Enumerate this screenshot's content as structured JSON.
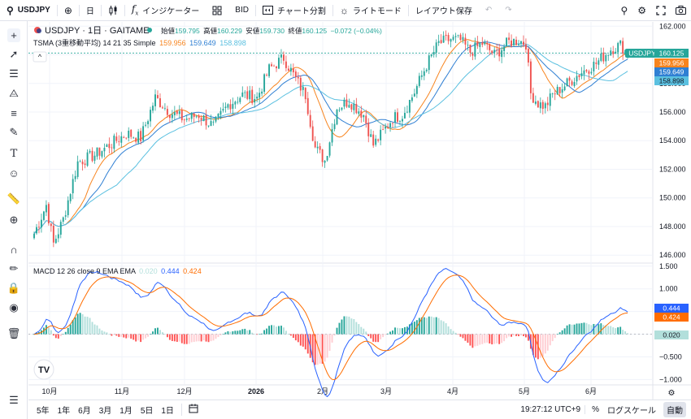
{
  "toolbar": {
    "symbol": "USDJPY",
    "add_icon": "plus-circle-icon",
    "interval": "日",
    "bar_style_icon": "candles-icon",
    "indicators_label": "インジケーター",
    "templates_icon": "grid-icon",
    "bid_label": "BID",
    "replay_label": "チャート分割",
    "theme_label": "ライトモード",
    "layout_label": "レイアウト保存",
    "undo_icon": "undo-icon",
    "redo_icon": "redo-icon",
    "right_icons": [
      "search-chart-icon",
      "gear-icon",
      "fullscreen-icon",
      "camera-icon"
    ]
  },
  "legend": {
    "title": "USDJPY · 1日 · GAITAME",
    "open_label": "始値",
    "open": "159.795",
    "high_label": "高値",
    "high": "160.229",
    "low_label": "安値",
    "low": "159.730",
    "close_label": "終値",
    "close": "160.125",
    "change": "−0.072 (−0.04%)",
    "tsma_label": "TSMA (3重移動平均) 14 21 35 Simple",
    "tsma_values": [
      "159.956",
      "159.649",
      "158.898"
    ],
    "macd_label": "MACD 12 26 close 9 EMA EMA",
    "macd_values": [
      "0.020",
      "0.444",
      "0.424"
    ]
  },
  "price_axis": {
    "ticks": [
      "162.000",
      "160.000",
      "158.000",
      "156.000",
      "154.000",
      "152.000",
      "150.000",
      "148.000",
      "146.000"
    ],
    "symbol_tag": "USDJPY",
    "last_price": "160.125",
    "ma_tags": [
      "159.956",
      "159.649",
      "158.898"
    ]
  },
  "macd_axis": {
    "ticks": [
      "1.500",
      "1.000",
      "0.500",
      "0.000",
      "−0.500",
      "−1.000"
    ],
    "tags": [
      "0.444",
      "0.424",
      "0.020"
    ]
  },
  "time_axis": [
    "10月",
    "11月",
    "12月",
    "2026",
    "2月",
    "3月",
    "4月",
    "5月",
    "6月"
  ],
  "bottom": {
    "ranges": [
      "5年",
      "1年",
      "6月",
      "3月",
      "1月",
      "5日",
      "1日"
    ],
    "calendar_icon": "calendar-icon",
    "time": "19:27:12 UTC+9",
    "percent": "%",
    "log": "ログスケール",
    "auto": "自動"
  },
  "colors": {
    "up": "#26a69a",
    "down": "#ef5350",
    "ma1": "#f7841e",
    "ma2": "#2f7fd3",
    "ma3": "#5bc0e0",
    "macd_line": "#2962ff",
    "signal_line": "#ff6d00",
    "hist_up_strong": "#26a69a",
    "hist_up_weak": "#b2dfdb",
    "hist_down_strong": "#ff5252",
    "hist_down_weak": "#ffcdd2"
  },
  "chart_data": [
    {
      "type": "candlestick",
      "title": "USDJPY · 1日 · GAITAME",
      "ylim": [
        145.5,
        162.3
      ],
      "x_labels": [
        "10月",
        "11月",
        "12月",
        "2026",
        "2月",
        "3月",
        "4月",
        "5月",
        "6月"
      ],
      "close_anchors": [
        [
          0,
          147.5
        ],
        [
          5,
          149.5
        ],
        [
          8,
          146.8
        ],
        [
          12,
          148.5
        ],
        [
          18,
          152.5
        ],
        [
          25,
          153.0
        ],
        [
          32,
          153.8
        ],
        [
          38,
          154.5
        ],
        [
          44,
          154.2
        ],
        [
          50,
          157.0
        ],
        [
          56,
          156.0
        ],
        [
          62,
          155.5
        ],
        [
          68,
          155.8
        ],
        [
          74,
          155.0
        ],
        [
          80,
          156.5
        ],
        [
          86,
          157.2
        ],
        [
          92,
          157.0
        ],
        [
          97,
          159.0
        ],
        [
          103,
          159.8
        ],
        [
          108,
          158.3
        ],
        [
          112,
          157.2
        ],
        [
          116,
          153.5
        ],
        [
          120,
          152.6
        ],
        [
          125,
          156.3
        ],
        [
          130,
          156.8
        ],
        [
          136,
          155.8
        ],
        [
          140,
          153.7
        ],
        [
          144,
          154.6
        ],
        [
          148,
          155.6
        ],
        [
          152,
          155.8
        ],
        [
          157,
          157.4
        ],
        [
          162,
          159.3
        ],
        [
          167,
          160.8
        ],
        [
          172,
          161.1
        ],
        [
          176,
          161.0
        ],
        [
          180,
          160.2
        ],
        [
          185,
          160.8
        ],
        [
          190,
          160.0
        ],
        [
          196,
          160.9
        ],
        [
          200,
          161.0
        ],
        [
          203,
          160.8
        ],
        [
          205,
          157.3
        ],
        [
          208,
          156.6
        ],
        [
          211,
          156.4
        ],
        [
          214,
          157.2
        ],
        [
          220,
          158.0
        ],
        [
          226,
          158.8
        ],
        [
          232,
          159.4
        ],
        [
          238,
          160.4
        ],
        [
          242,
          160.7
        ],
        [
          245,
          160.1
        ]
      ],
      "last": {
        "open": 159.795,
        "high": 160.229,
        "low": 159.73,
        "close": 160.125
      },
      "series": [
        {
          "name": "159.956",
          "type": "line",
          "period": 14
        },
        {
          "name": "159.649",
          "type": "line",
          "period": 21
        },
        {
          "name": "158.898",
          "type": "line",
          "period": 35
        }
      ]
    },
    {
      "type": "macd",
      "title": "MACD 12 26 close 9 EMA EMA",
      "ylim": [
        -1.1,
        1.55
      ],
      "last": {
        "histogram": 0.02,
        "macd": 0.444,
        "signal": 0.424
      }
    }
  ]
}
